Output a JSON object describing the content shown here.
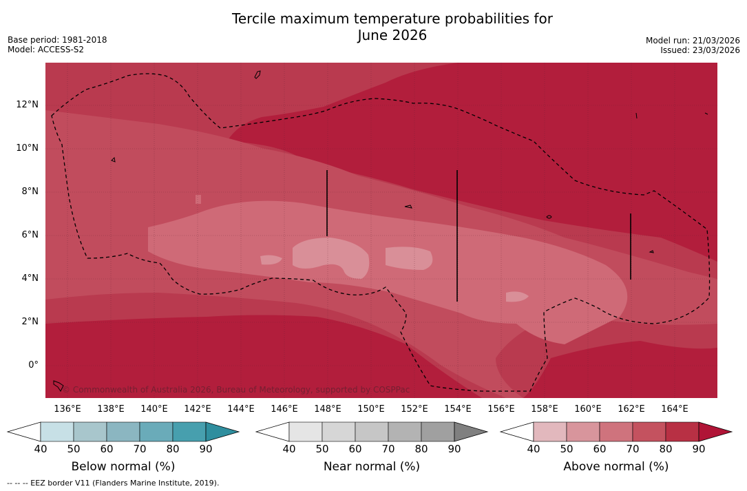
{
  "title": {
    "line1": "Tercile maximum temperature probabilities for",
    "line2": "June 2026"
  },
  "meta": {
    "base_period": "Base period: 1981-2018",
    "model": "Model: ACCESS-S2",
    "model_run": "Model run: 21/03/2026",
    "issued": "Issued: 23/03/2026"
  },
  "map": {
    "latitude_labels": [
      "12°N",
      "10°N",
      "8°N",
      "6°N",
      "4°N",
      "2°N",
      "0°"
    ],
    "longitude_labels": [
      "136°E",
      "138°E",
      "140°E",
      "142°E",
      "144°E",
      "146°E",
      "148°E",
      "150°E",
      "152°E",
      "154°E",
      "156°E",
      "158°E",
      "160°E",
      "162°E",
      "164°E"
    ],
    "copyright": "© Commonwealth of Australia 2026, Bureau of Meteorology, supported by COSPPac",
    "colors": {
      "above_60_70": "#cf6a77",
      "above_70_80": "#c14c5d",
      "above_80_90": "#b93a4f",
      "above_90": "#b21e3c",
      "above_50_60": "#d98f98"
    }
  },
  "legends": [
    {
      "title": "Below normal (%)",
      "ticks": [
        "40",
        "50",
        "60",
        "70",
        "80",
        "90"
      ],
      "colors": [
        "#ffffff",
        "#c7e0e6",
        "#a8c6cc",
        "#8bb6c1",
        "#6aabb9",
        "#479fae",
        "#2f8e9e"
      ]
    },
    {
      "title": "Near normal (%)",
      "ticks": [
        "40",
        "50",
        "60",
        "70",
        "80",
        "90"
      ],
      "colors": [
        "#ffffff",
        "#e5e5e5",
        "#d6d6d6",
        "#c6c6c6",
        "#b3b3b3",
        "#a0a0a0",
        "#808080"
      ]
    },
    {
      "title": "Above normal (%)",
      "ticks": [
        "40",
        "50",
        "60",
        "70",
        "80",
        "90"
      ],
      "colors": [
        "#ffffff",
        "#e2b8bd",
        "#d8959c",
        "#cf737d",
        "#c4525f",
        "#b83044",
        "#b01436"
      ]
    }
  ],
  "footer": {
    "eez_note": "--  --  -- EEZ border V11 (Flanders Marine Institute, 2019)."
  }
}
